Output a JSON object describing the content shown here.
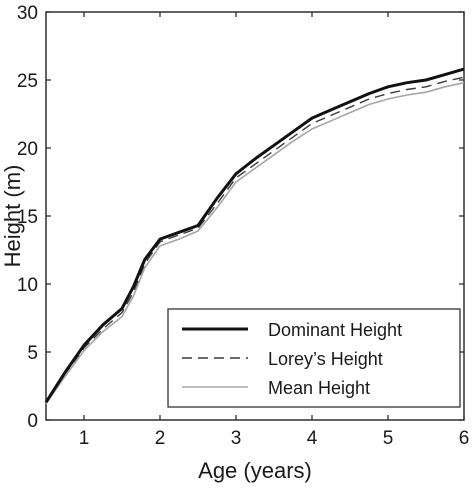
{
  "chart_data": {
    "type": "line",
    "title": "",
    "xlabel": "Age (years)",
    "ylabel": "Height (m)",
    "xlim": [
      0.5,
      6
    ],
    "ylim": [
      0,
      30
    ],
    "xticks": [
      1,
      2,
      3,
      4,
      5,
      6
    ],
    "yticks": [
      0,
      5,
      10,
      15,
      20,
      25,
      30
    ],
    "grid": false,
    "legend_position": "bottom-right",
    "series": [
      {
        "name": "Dominant Height",
        "style": "solid-thick",
        "color": "#111111",
        "x": [
          0.5,
          0.75,
          1.0,
          1.25,
          1.5,
          1.65,
          1.8,
          2.0,
          2.25,
          2.5,
          2.75,
          3.0,
          3.25,
          3.5,
          3.75,
          4.0,
          4.25,
          4.5,
          4.75,
          5.0,
          5.25,
          5.5,
          5.75,
          6.0
        ],
        "y": [
          1.3,
          3.5,
          5.5,
          7.0,
          8.2,
          9.8,
          11.8,
          13.3,
          13.8,
          14.3,
          16.3,
          18.1,
          19.2,
          20.2,
          21.2,
          22.2,
          22.8,
          23.4,
          24.0,
          24.5,
          24.8,
          25.0,
          25.4,
          25.8
        ]
      },
      {
        "name": "Lorey’s Height",
        "style": "dashed",
        "color": "#3a3a3a",
        "x": [
          0.5,
          0.75,
          1.0,
          1.25,
          1.5,
          1.65,
          1.8,
          2.0,
          2.25,
          2.5,
          2.75,
          3.0,
          3.25,
          3.5,
          3.75,
          4.0,
          4.25,
          4.5,
          4.75,
          5.0,
          5.25,
          5.5,
          5.75,
          6.0
        ],
        "y": [
          1.3,
          3.4,
          5.3,
          6.7,
          7.9,
          9.4,
          11.5,
          13.1,
          13.6,
          14.1,
          15.9,
          17.8,
          18.8,
          19.8,
          20.8,
          21.8,
          22.4,
          23.0,
          23.6,
          24.0,
          24.3,
          24.5,
          24.9,
          25.2
        ]
      },
      {
        "name": "Mean Height",
        "style": "solid-thin",
        "color": "#a6a6a6",
        "x": [
          0.5,
          0.75,
          1.0,
          1.25,
          1.5,
          1.65,
          1.8,
          2.0,
          2.25,
          2.5,
          2.75,
          3.0,
          3.25,
          3.5,
          3.75,
          4.0,
          4.25,
          4.5,
          4.75,
          5.0,
          5.25,
          5.5,
          5.75,
          6.0
        ],
        "y": [
          1.2,
          3.2,
          5.1,
          6.5,
          7.6,
          9.1,
          11.2,
          12.8,
          13.3,
          13.9,
          15.6,
          17.5,
          18.5,
          19.5,
          20.5,
          21.4,
          22.0,
          22.6,
          23.2,
          23.6,
          23.9,
          24.1,
          24.5,
          24.8
        ]
      }
    ]
  }
}
